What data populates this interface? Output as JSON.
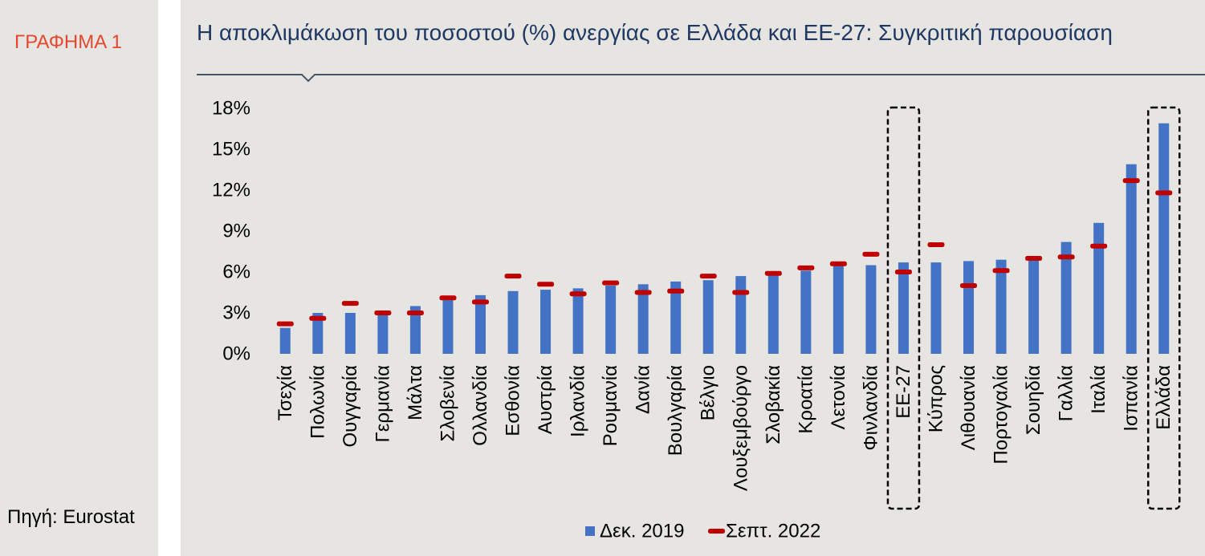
{
  "colors": {
    "panel_background": "#e6e5e1",
    "figure_label": "#e5482f",
    "title": "#1f3864",
    "title_rule": "#44546a",
    "highlight_box": "#000000"
  },
  "sidebar": {
    "figure_label": "ΓΡΑΦΗΜΑ 1",
    "source": "Πηγή: Eurostat"
  },
  "chart_data": {
    "type": "bar",
    "title": "Η αποκλιμάκωση του ποσοστού (%) ανεργίας σε Ελλάδα και ΕΕ-27: Συγκριτική παρουσίαση",
    "xlabel": "",
    "ylabel": "",
    "categories": [
      "Τσεχία",
      "Πολωνία",
      "Ουγγαρία",
      "Γερμανία",
      "Μάλτα",
      "Σλοβενία",
      "Ολλανδία",
      "Εσθονία",
      "Αυστρία",
      "Ιρλανδία",
      "Ρουμανία",
      "Δανία",
      "Βουλγαρία",
      "Βέλγιο",
      "Λουξεμβούργο",
      "Σλοβακία",
      "Κροατία",
      "Λετονία",
      "Φινλανδία",
      "ΕΕ-27",
      "Κύπρος",
      "Λιθουανία",
      "Πορτογαλία",
      "Σουηδία",
      "Γαλλία",
      "Ιταλία",
      "Ισπανία",
      "Ελλάδα"
    ],
    "series": [
      {
        "name": "Δεκ. 2019",
        "color": "#4472c4",
        "values": [
          1.9,
          3.0,
          3.0,
          3.1,
          3.5,
          4.0,
          4.3,
          4.6,
          4.7,
          4.8,
          5.0,
          5.1,
          5.3,
          5.4,
          5.7,
          5.8,
          6.1,
          6.5,
          6.5,
          6.7,
          6.7,
          6.8,
          6.9,
          7.0,
          8.2,
          9.6,
          13.9,
          16.9
        ]
      },
      {
        "name": "Σεπτ. 2022",
        "color": "#c00000",
        "values": [
          2.2,
          2.6,
          3.7,
          3.0,
          3.0,
          4.1,
          3.8,
          5.7,
          5.1,
          4.4,
          5.2,
          4.5,
          4.6,
          5.7,
          4.5,
          5.9,
          6.3,
          6.6,
          7.3,
          6.0,
          8.0,
          5.0,
          6.1,
          7.0,
          7.1,
          7.9,
          12.7,
          11.8
        ]
      }
    ],
    "ylim": [
      0,
      18
    ],
    "yticks": [
      0,
      3,
      6,
      9,
      12,
      15,
      18
    ],
    "ytick_labels": [
      "0%",
      "3%",
      "6%",
      "9%",
      "12%",
      "15%",
      "18%"
    ],
    "grid": false,
    "legend_position": "bottom",
    "highlighted_category_indices": [
      19,
      27
    ]
  }
}
